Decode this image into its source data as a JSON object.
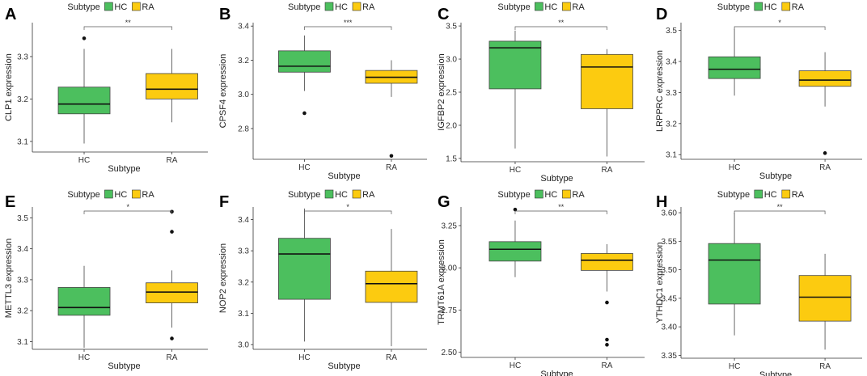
{
  "chart_data": [
    {
      "type": "box",
      "panel": "A",
      "ylabel": "CLP1 expression",
      "xlabel": "Subtype",
      "legend": {
        "title": "Subtype",
        "entries": [
          {
            "label": "HC",
            "color": "#4cbf5e"
          },
          {
            "label": "RA",
            "color": "#fccb10"
          }
        ],
        "position": "top"
      },
      "categories": [
        "HC",
        "RA"
      ],
      "ylim": [
        3.075,
        3.38
      ],
      "yticks": [
        3.1,
        3.2,
        3.3
      ],
      "ytick_labels": [
        "3.1",
        "3.2",
        "3.3"
      ],
      "boxes": [
        {
          "group": "HC",
          "min": 3.095,
          "q1": 3.165,
          "median": 3.188,
          "q3": 3.228,
          "max": 3.318,
          "outliers": [
            3.343
          ]
        },
        {
          "group": "RA",
          "min": 3.145,
          "q1": 3.2,
          "median": 3.223,
          "q3": 3.26,
          "max": 3.318,
          "outliers": []
        }
      ],
      "significance": "**"
    },
    {
      "type": "box",
      "panel": "B",
      "ylabel": "CPSF4 expression",
      "xlabel": "Subtype",
      "legend": {
        "title": "Subtype",
        "entries": [
          {
            "label": "HC",
            "color": "#4cbf5e"
          },
          {
            "label": "RA",
            "color": "#fccb10"
          }
        ],
        "position": "top"
      },
      "categories": [
        "HC",
        "RA"
      ],
      "ylim": [
        2.62,
        3.42
      ],
      "yticks": [
        2.8,
        3.0,
        3.2,
        3.4
      ],
      "ytick_labels": [
        "2.8",
        "3.0",
        "3.2",
        "3.4"
      ],
      "boxes": [
        {
          "group": "HC",
          "min": 3.02,
          "q1": 3.13,
          "median": 3.165,
          "q3": 3.255,
          "max": 3.345,
          "outliers": [
            2.89
          ]
        },
        {
          "group": "RA",
          "min": 2.985,
          "q1": 3.065,
          "median": 3.1,
          "q3": 3.14,
          "max": 3.2,
          "outliers": [
            2.64
          ]
        }
      ],
      "significance": "***"
    },
    {
      "type": "box",
      "panel": "C",
      "ylabel": "IGFBP2 expression",
      "xlabel": "Subtype",
      "legend": {
        "title": "Subtype",
        "entries": [
          {
            "label": "HC",
            "color": "#4cbf5e"
          },
          {
            "label": "RA",
            "color": "#fccb10"
          }
        ],
        "position": "top"
      },
      "categories": [
        "HC",
        "RA"
      ],
      "ylim": [
        1.45,
        3.55
      ],
      "yticks": [
        1.5,
        2.0,
        2.5,
        3.0,
        3.5
      ],
      "ytick_labels": [
        "1.5",
        "2.0",
        "2.5",
        "3.0",
        "3.5"
      ],
      "boxes": [
        {
          "group": "HC",
          "min": 1.65,
          "q1": 2.55,
          "median": 3.17,
          "q3": 3.27,
          "max": 3.43,
          "outliers": []
        },
        {
          "group": "RA",
          "min": 1.53,
          "q1": 2.25,
          "median": 2.88,
          "q3": 3.07,
          "max": 3.15,
          "outliers": []
        }
      ],
      "significance": "**"
    },
    {
      "type": "box",
      "panel": "D",
      "ylabel": "LRPPRC expression",
      "xlabel": "Subtype",
      "legend": {
        "title": "Subtype",
        "entries": [
          {
            "label": "HC",
            "color": "#4cbf5e"
          },
          {
            "label": "RA",
            "color": "#fccb10"
          }
        ],
        "position": "top"
      },
      "categories": [
        "HC",
        "RA"
      ],
      "ylim": [
        3.085,
        3.525
      ],
      "yticks": [
        3.1,
        3.2,
        3.3,
        3.4,
        3.5
      ],
      "ytick_labels": [
        "3.1",
        "3.2",
        "3.3",
        "3.4",
        "3.5"
      ],
      "boxes": [
        {
          "group": "HC",
          "min": 3.29,
          "q1": 3.345,
          "median": 3.375,
          "q3": 3.415,
          "max": 3.505,
          "outliers": []
        },
        {
          "group": "RA",
          "min": 3.255,
          "q1": 3.32,
          "median": 3.34,
          "q3": 3.37,
          "max": 3.43,
          "outliers": [
            3.105
          ]
        }
      ],
      "significance": "*"
    },
    {
      "type": "box",
      "panel": "E",
      "ylabel": "METTL3 expression",
      "xlabel": "Subtype",
      "legend": {
        "title": "Subtype",
        "entries": [
          {
            "label": "HC",
            "color": "#4cbf5e"
          },
          {
            "label": "RA",
            "color": "#fccb10"
          }
        ],
        "position": "top"
      },
      "categories": [
        "HC",
        "RA"
      ],
      "ylim": [
        3.075,
        3.535
      ],
      "yticks": [
        3.1,
        3.2,
        3.3,
        3.4,
        3.5
      ],
      "ytick_labels": [
        "3.1",
        "3.2",
        "3.3",
        "3.4",
        "3.5"
      ],
      "boxes": [
        {
          "group": "HC",
          "min": 3.08,
          "q1": 3.185,
          "median": 3.21,
          "q3": 3.275,
          "max": 3.345,
          "outliers": []
        },
        {
          "group": "RA",
          "min": 3.145,
          "q1": 3.225,
          "median": 3.26,
          "q3": 3.29,
          "max": 3.33,
          "outliers": [
            3.52,
            3.455,
            3.11
          ]
        }
      ],
      "significance": "*"
    },
    {
      "type": "box",
      "panel": "F",
      "ylabel": "NOP2 expression",
      "xlabel": "Subtype",
      "legend": {
        "title": "Subtype",
        "entries": [
          {
            "label": "HC",
            "color": "#4cbf5e"
          },
          {
            "label": "RA",
            "color": "#fccb10"
          }
        ],
        "position": "top"
      },
      "categories": [
        "HC",
        "RA"
      ],
      "ylim": [
        2.985,
        3.44
      ],
      "yticks": [
        3.0,
        3.1,
        3.2,
        3.3,
        3.4
      ],
      "ytick_labels": [
        "3.0",
        "3.1",
        "3.2",
        "3.3",
        "3.4"
      ],
      "boxes": [
        {
          "group": "HC",
          "min": 3.01,
          "q1": 3.145,
          "median": 3.29,
          "q3": 3.34,
          "max": 3.435,
          "outliers": []
        },
        {
          "group": "RA",
          "min": 2.995,
          "q1": 3.135,
          "median": 3.195,
          "q3": 3.235,
          "max": 3.37,
          "outliers": []
        }
      ],
      "significance": "*"
    },
    {
      "type": "box",
      "panel": "G",
      "ylabel": "TRMT61A expression",
      "xlabel": "Subtype",
      "legend": {
        "title": "Subtype",
        "entries": [
          {
            "label": "HC",
            "color": "#4cbf5e"
          },
          {
            "label": "RA",
            "color": "#fccb10"
          }
        ],
        "position": "top"
      },
      "categories": [
        "HC",
        "RA"
      ],
      "ylim": [
        2.47,
        3.36
      ],
      "yticks": [
        2.5,
        2.75,
        3.0,
        3.25
      ],
      "ytick_labels": [
        "2.50",
        "2.75",
        "3.00",
        "3.25"
      ],
      "boxes": [
        {
          "group": "HC",
          "min": 2.945,
          "q1": 3.04,
          "median": 3.11,
          "q3": 3.155,
          "max": 3.28,
          "outliers": [
            3.345
          ]
        },
        {
          "group": "RA",
          "min": 2.86,
          "q1": 2.985,
          "median": 3.045,
          "q3": 3.085,
          "max": 3.14,
          "outliers": [
            2.795,
            2.575,
            2.545
          ]
        }
      ],
      "significance": "**"
    },
    {
      "type": "box",
      "panel": "H",
      "ylabel": "YTHDC1 expression",
      "xlabel": "Subtype",
      "legend": {
        "title": "Subtype",
        "entries": [
          {
            "label": "HC",
            "color": "#4cbf5e"
          },
          {
            "label": "RA",
            "color": "#fccb10"
          }
        ],
        "position": "top"
      },
      "categories": [
        "HC",
        "RA"
      ],
      "ylim": [
        3.345,
        3.61
      ],
      "yticks": [
        3.35,
        3.4,
        3.45,
        3.5,
        3.55,
        3.6
      ],
      "ytick_labels": [
        "3.35",
        "3.40",
        "3.45",
        "3.50",
        "3.55",
        "3.60"
      ],
      "boxes": [
        {
          "group": "HC",
          "min": 3.385,
          "q1": 3.44,
          "median": 3.517,
          "q3": 3.546,
          "max": 3.6,
          "outliers": []
        },
        {
          "group": "RA",
          "min": 3.36,
          "q1": 3.41,
          "median": 3.452,
          "q3": 3.49,
          "max": 3.528,
          "outliers": []
        }
      ],
      "significance": "**"
    }
  ]
}
